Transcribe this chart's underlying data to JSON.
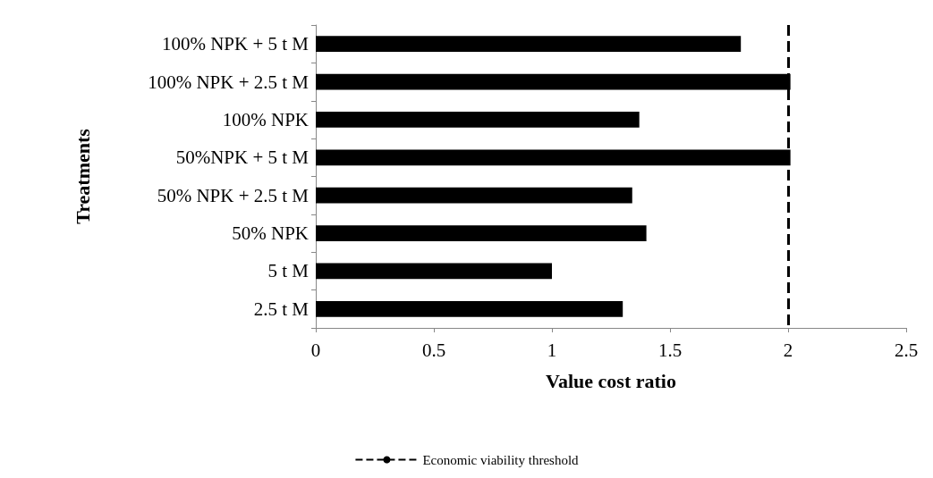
{
  "chart_data": {
    "type": "bar",
    "orientation": "horizontal",
    "xlabel": "Value cost ratio",
    "ylabel": "Treatments",
    "categories": [
      "100% NPK + 5 t M",
      "100% NPK + 2.5 t M",
      "100% NPK",
      "50%NPK + 5 t M",
      "50% NPK + 2.5 t M",
      "50% NPK",
      "5 t M",
      "2.5 t M"
    ],
    "values": [
      1.8,
      2.01,
      1.37,
      2.01,
      1.34,
      1.4,
      1.0,
      1.3
    ],
    "color": "#000000",
    "xlim": [
      0,
      2.5
    ],
    "xticks": [
      0,
      0.5,
      1,
      1.5,
      2,
      2.5
    ],
    "grid": false,
    "legend": "bottom",
    "ref_lines": [
      {
        "axis": "x",
        "value": 2,
        "label": "Economic viability threshold",
        "color": "#000000",
        "line_style": "dashed"
      }
    ]
  }
}
